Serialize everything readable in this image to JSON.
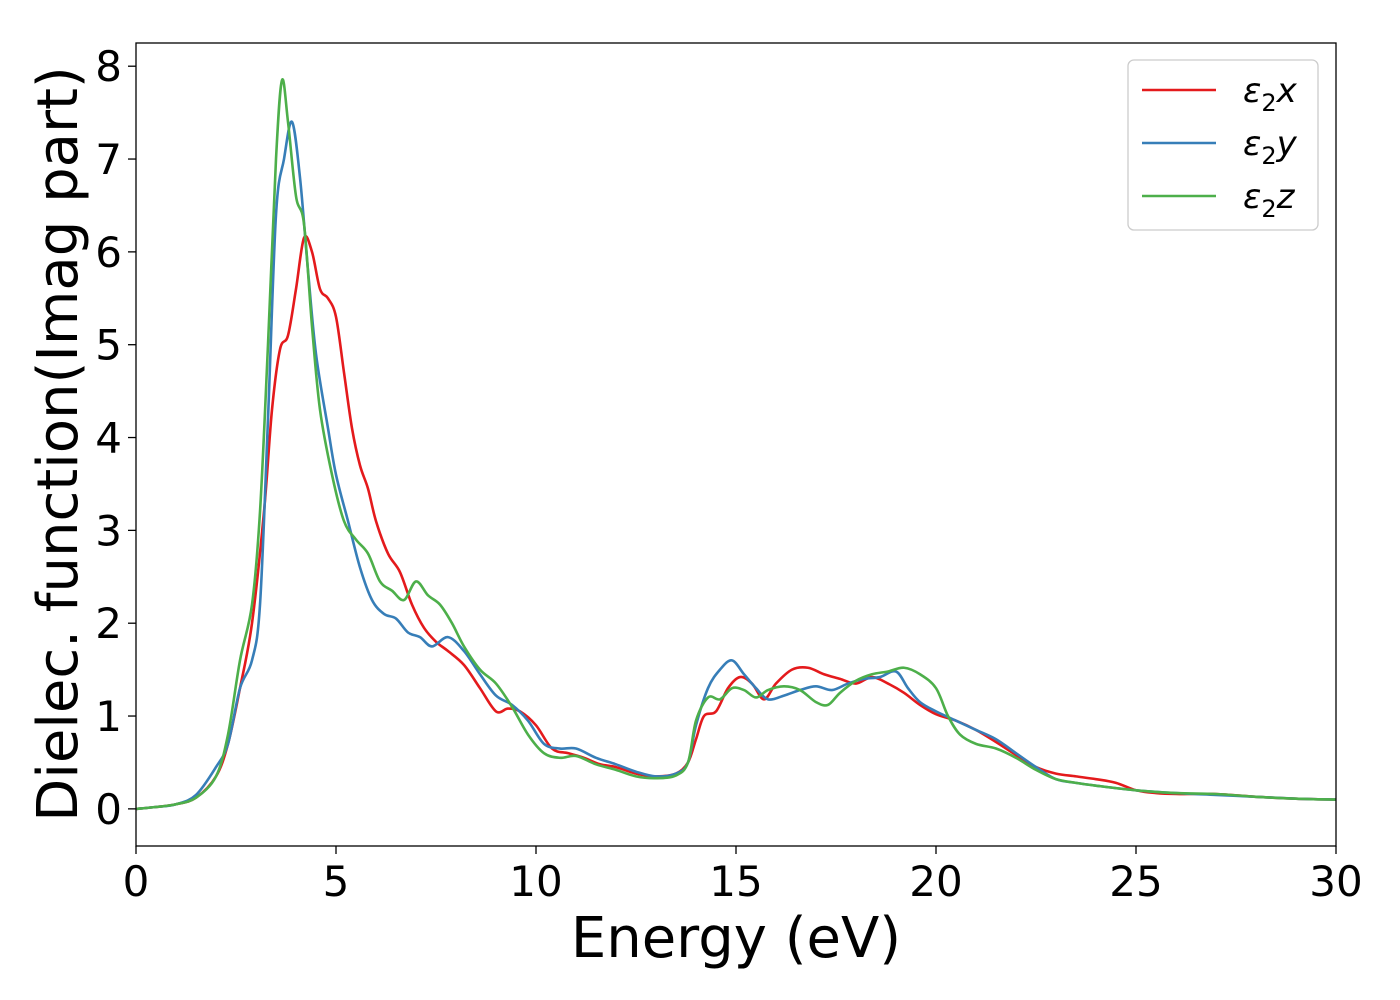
{
  "chart_data": {
    "type": "line",
    "title": "",
    "xlabel": "Energy (eV)",
    "ylabel": "Dielec. function(Imag part)",
    "xlim": [
      0,
      30
    ],
    "ylim": [
      -0.4,
      8.25
    ],
    "xticks": [
      0,
      5,
      10,
      15,
      20,
      25,
      30
    ],
    "yticks": [
      0,
      1,
      2,
      3,
      4,
      5,
      6,
      7,
      8
    ],
    "grid": false,
    "legend": "top-right",
    "series": [
      {
        "name": "ε₂x",
        "legend_base": "ε",
        "legend_sub": "2",
        "legend_suffix": "x",
        "color": "#e41a1c",
        "points": [
          [
            0,
            0.0
          ],
          [
            0.5,
            0.02
          ],
          [
            1,
            0.05
          ],
          [
            1.5,
            0.12
          ],
          [
            2,
            0.35
          ],
          [
            2.3,
            0.7
          ],
          [
            2.6,
            1.3
          ],
          [
            2.9,
            2.0
          ],
          [
            3.2,
            3.2
          ],
          [
            3.4,
            4.3
          ],
          [
            3.6,
            4.95
          ],
          [
            3.8,
            5.1
          ],
          [
            4.0,
            5.6
          ],
          [
            4.2,
            6.15
          ],
          [
            4.4,
            6.0
          ],
          [
            4.6,
            5.6
          ],
          [
            4.8,
            5.5
          ],
          [
            5.0,
            5.3
          ],
          [
            5.2,
            4.7
          ],
          [
            5.4,
            4.1
          ],
          [
            5.6,
            3.7
          ],
          [
            5.8,
            3.45
          ],
          [
            6.0,
            3.1
          ],
          [
            6.3,
            2.75
          ],
          [
            6.6,
            2.55
          ],
          [
            6.9,
            2.2
          ],
          [
            7.2,
            1.95
          ],
          [
            7.5,
            1.8
          ],
          [
            7.8,
            1.7
          ],
          [
            8.2,
            1.55
          ],
          [
            8.6,
            1.3
          ],
          [
            9.0,
            1.05
          ],
          [
            9.3,
            1.08
          ],
          [
            9.6,
            1.05
          ],
          [
            10.0,
            0.9
          ],
          [
            10.4,
            0.65
          ],
          [
            10.8,
            0.6
          ],
          [
            11.2,
            0.55
          ],
          [
            11.6,
            0.48
          ],
          [
            12.0,
            0.45
          ],
          [
            12.5,
            0.38
          ],
          [
            13.0,
            0.35
          ],
          [
            13.5,
            0.38
          ],
          [
            13.8,
            0.5
          ],
          [
            14.0,
            0.75
          ],
          [
            14.2,
            1.0
          ],
          [
            14.5,
            1.05
          ],
          [
            14.8,
            1.3
          ],
          [
            15.1,
            1.42
          ],
          [
            15.4,
            1.35
          ],
          [
            15.7,
            1.18
          ],
          [
            16.0,
            1.35
          ],
          [
            16.4,
            1.5
          ],
          [
            16.8,
            1.52
          ],
          [
            17.2,
            1.45
          ],
          [
            17.6,
            1.4
          ],
          [
            18.0,
            1.35
          ],
          [
            18.4,
            1.42
          ],
          [
            18.8,
            1.35
          ],
          [
            19.2,
            1.25
          ],
          [
            19.6,
            1.12
          ],
          [
            20.0,
            1.02
          ],
          [
            20.5,
            0.95
          ],
          [
            21.0,
            0.85
          ],
          [
            21.5,
            0.72
          ],
          [
            22.0,
            0.58
          ],
          [
            22.5,
            0.45
          ],
          [
            23.0,
            0.38
          ],
          [
            23.5,
            0.35
          ],
          [
            24.0,
            0.32
          ],
          [
            24.5,
            0.28
          ],
          [
            25.0,
            0.2
          ],
          [
            25.5,
            0.17
          ],
          [
            26.0,
            0.16
          ],
          [
            27.0,
            0.16
          ],
          [
            28.0,
            0.13
          ],
          [
            29.0,
            0.11
          ],
          [
            30.0,
            0.1
          ]
        ]
      },
      {
        "name": "ε₂y",
        "legend_base": "ε",
        "legend_sub": "2",
        "legend_suffix": "y",
        "color": "#377eb8",
        "points": [
          [
            0,
            0.0
          ],
          [
            0.5,
            0.02
          ],
          [
            1,
            0.05
          ],
          [
            1.5,
            0.15
          ],
          [
            2,
            0.45
          ],
          [
            2.3,
            0.7
          ],
          [
            2.6,
            1.3
          ],
          [
            2.9,
            1.6
          ],
          [
            3.1,
            2.2
          ],
          [
            3.3,
            4.2
          ],
          [
            3.5,
            6.4
          ],
          [
            3.7,
            7.0
          ],
          [
            3.9,
            7.4
          ],
          [
            4.1,
            6.8
          ],
          [
            4.3,
            5.8
          ],
          [
            4.5,
            4.9
          ],
          [
            4.8,
            4.1
          ],
          [
            5.0,
            3.6
          ],
          [
            5.3,
            3.1
          ],
          [
            5.6,
            2.6
          ],
          [
            5.9,
            2.25
          ],
          [
            6.2,
            2.1
          ],
          [
            6.5,
            2.05
          ],
          [
            6.8,
            1.9
          ],
          [
            7.1,
            1.85
          ],
          [
            7.4,
            1.75
          ],
          [
            7.8,
            1.85
          ],
          [
            8.2,
            1.7
          ],
          [
            8.6,
            1.45
          ],
          [
            9.0,
            1.22
          ],
          [
            9.4,
            1.12
          ],
          [
            9.8,
            0.95
          ],
          [
            10.2,
            0.7
          ],
          [
            10.6,
            0.65
          ],
          [
            11.0,
            0.65
          ],
          [
            11.5,
            0.55
          ],
          [
            12.0,
            0.48
          ],
          [
            12.5,
            0.4
          ],
          [
            13.0,
            0.35
          ],
          [
            13.5,
            0.38
          ],
          [
            13.8,
            0.5
          ],
          [
            14.0,
            0.9
          ],
          [
            14.3,
            1.3
          ],
          [
            14.6,
            1.5
          ],
          [
            14.9,
            1.6
          ],
          [
            15.2,
            1.45
          ],
          [
            15.5,
            1.3
          ],
          [
            15.8,
            1.18
          ],
          [
            16.2,
            1.22
          ],
          [
            16.6,
            1.28
          ],
          [
            17.0,
            1.32
          ],
          [
            17.4,
            1.28
          ],
          [
            17.8,
            1.35
          ],
          [
            18.2,
            1.4
          ],
          [
            18.6,
            1.42
          ],
          [
            19.0,
            1.48
          ],
          [
            19.3,
            1.3
          ],
          [
            19.6,
            1.15
          ],
          [
            20.0,
            1.05
          ],
          [
            20.5,
            0.95
          ],
          [
            21.0,
            0.85
          ],
          [
            21.5,
            0.75
          ],
          [
            22.0,
            0.6
          ],
          [
            22.5,
            0.45
          ],
          [
            23.0,
            0.32
          ],
          [
            23.5,
            0.28
          ],
          [
            24.0,
            0.25
          ],
          [
            25.0,
            0.2
          ],
          [
            26.0,
            0.17
          ],
          [
            27.0,
            0.15
          ],
          [
            28.0,
            0.13
          ],
          [
            29.0,
            0.11
          ],
          [
            30.0,
            0.1
          ]
        ]
      },
      {
        "name": "ε₂z",
        "legend_base": "ε",
        "legend_sub": "2",
        "legend_suffix": "z",
        "color": "#4daf4a",
        "points": [
          [
            0,
            0.0
          ],
          [
            0.5,
            0.02
          ],
          [
            1,
            0.05
          ],
          [
            1.5,
            0.12
          ],
          [
            2,
            0.35
          ],
          [
            2.3,
            0.8
          ],
          [
            2.6,
            1.6
          ],
          [
            2.9,
            2.2
          ],
          [
            3.1,
            3.2
          ],
          [
            3.3,
            5.0
          ],
          [
            3.5,
            7.0
          ],
          [
            3.65,
            7.85
          ],
          [
            3.8,
            7.4
          ],
          [
            4.0,
            6.6
          ],
          [
            4.2,
            6.3
          ],
          [
            4.4,
            5.2
          ],
          [
            4.6,
            4.3
          ],
          [
            4.9,
            3.6
          ],
          [
            5.2,
            3.1
          ],
          [
            5.5,
            2.9
          ],
          [
            5.8,
            2.75
          ],
          [
            6.1,
            2.45
          ],
          [
            6.4,
            2.35
          ],
          [
            6.7,
            2.25
          ],
          [
            7.0,
            2.45
          ],
          [
            7.3,
            2.3
          ],
          [
            7.6,
            2.2
          ],
          [
            7.9,
            2.0
          ],
          [
            8.2,
            1.75
          ],
          [
            8.6,
            1.5
          ],
          [
            9.0,
            1.35
          ],
          [
            9.4,
            1.1
          ],
          [
            9.8,
            0.8
          ],
          [
            10.2,
            0.6
          ],
          [
            10.6,
            0.55
          ],
          [
            11.0,
            0.57
          ],
          [
            11.5,
            0.48
          ],
          [
            12.0,
            0.42
          ],
          [
            12.5,
            0.35
          ],
          [
            13.0,
            0.33
          ],
          [
            13.5,
            0.36
          ],
          [
            13.8,
            0.5
          ],
          [
            14.0,
            0.95
          ],
          [
            14.3,
            1.2
          ],
          [
            14.6,
            1.18
          ],
          [
            14.9,
            1.3
          ],
          [
            15.2,
            1.28
          ],
          [
            15.5,
            1.2
          ],
          [
            15.8,
            1.28
          ],
          [
            16.2,
            1.32
          ],
          [
            16.6,
            1.28
          ],
          [
            17.0,
            1.15
          ],
          [
            17.3,
            1.12
          ],
          [
            17.6,
            1.25
          ],
          [
            18.0,
            1.38
          ],
          [
            18.4,
            1.45
          ],
          [
            18.8,
            1.48
          ],
          [
            19.2,
            1.52
          ],
          [
            19.6,
            1.45
          ],
          [
            20.0,
            1.3
          ],
          [
            20.3,
            1.0
          ],
          [
            20.6,
            0.8
          ],
          [
            21.0,
            0.7
          ],
          [
            21.5,
            0.65
          ],
          [
            22.0,
            0.55
          ],
          [
            22.5,
            0.42
          ],
          [
            23.0,
            0.32
          ],
          [
            23.5,
            0.28
          ],
          [
            24.0,
            0.25
          ],
          [
            25.0,
            0.2
          ],
          [
            26.0,
            0.17
          ],
          [
            27.0,
            0.16
          ],
          [
            28.0,
            0.13
          ],
          [
            29.0,
            0.11
          ],
          [
            30.0,
            0.1
          ]
        ]
      }
    ]
  }
}
